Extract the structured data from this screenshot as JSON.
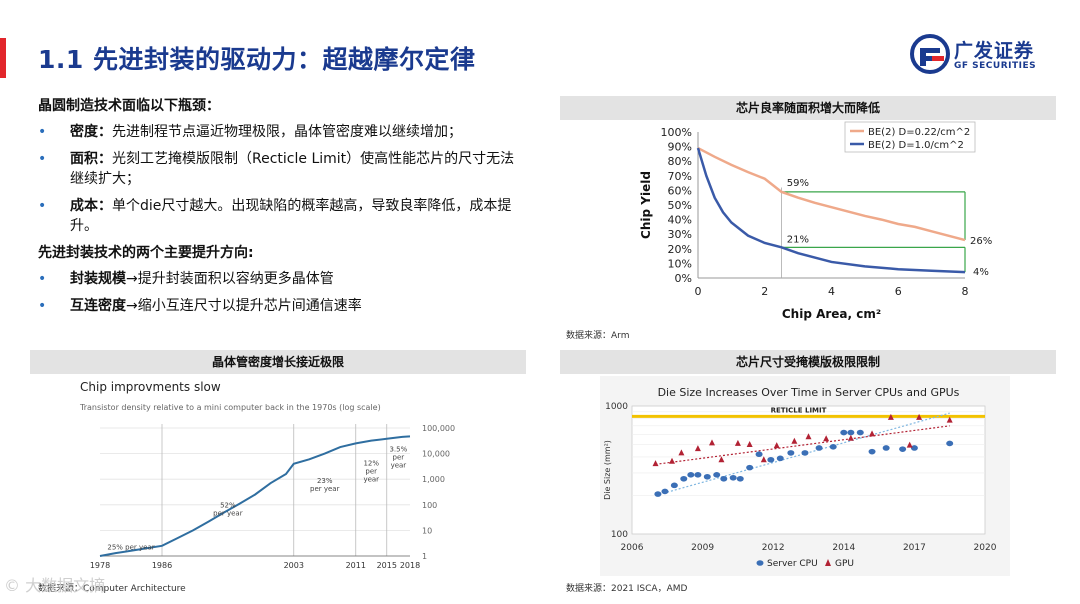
{
  "header": {
    "title": "1.1 先进封装的驱动力：超越摩尔定律",
    "logo_cn": "广发证券",
    "logo_en": "GF SECURITIES",
    "brand_color": "#1a3a8f",
    "accent_color": "#e2262b"
  },
  "text": {
    "heading1": "晶圆制造技术面临以下瓶颈：",
    "bullets1": [
      {
        "key": "密度：",
        "text": "先进制程节点逼近物理极限，晶体管密度难以继续增加；"
      },
      {
        "key": "面积：",
        "text": "光刻工艺掩模版限制（Recticle Limit）使高性能芯片的尺寸无法继续扩大；"
      },
      {
        "key": "成本：",
        "text": "单个die尺寸越大。出现缺陷的概率越高，导致良率降低，成本提升。"
      }
    ],
    "heading2": "先进封装技术的两个主要提升方向:",
    "bullets2": [
      {
        "key": "封装规模",
        "text": "→提升封装面积以容纳更多晶体管"
      },
      {
        "key": "互连密度",
        "text": "→缩小互连尺寸以提升芯片间通信速率"
      }
    ],
    "bullet_glyph": "•"
  },
  "panels": {
    "yield_title": "芯片良率随面积增大而降低",
    "yield_source": "数据来源：Arm",
    "density_title": "晶体管密度增长接近极限",
    "density_source": "数据来源：Computer Architecture",
    "die_title": "芯片尺寸受掩模版极限限制",
    "die_source": "数据来源：2021 ISCA，AMD"
  },
  "watermark": "© 大数据文摘",
  "chart_data": [
    {
      "type": "line",
      "xlabel": "Chip Area, cm²",
      "ylabel": "Chip Yield",
      "xlim": [
        0,
        8
      ],
      "ylim": [
        0,
        100
      ],
      "xticks": [
        "0",
        "2",
        "4",
        "6",
        "8"
      ],
      "yticks": [
        "0%",
        "10%",
        "20%",
        "30%",
        "40%",
        "50%",
        "60%",
        "70%",
        "80%",
        "90%",
        "100%"
      ],
      "legend_position": "top-right",
      "grid": false,
      "series": [
        {
          "name": "BE(2) D=0.22/cm^2",
          "color": "#efa98a",
          "x": [
            0,
            0.5,
            1,
            1.5,
            2,
            2.5,
            3,
            3.5,
            4,
            4.5,
            5,
            5.5,
            6,
            6.5,
            7,
            7.5,
            8
          ],
          "y": [
            89,
            83,
            77.5,
            72.5,
            68,
            59,
            55,
            51.5,
            48.5,
            45.5,
            42.5,
            40,
            37,
            35,
            32,
            29,
            26
          ]
        },
        {
          "name": "BE(2) D=1.0/cm^2",
          "color": "#3a5aa8",
          "x": [
            0,
            0.25,
            0.5,
            0.75,
            1,
            1.5,
            2,
            2.5,
            3,
            3.5,
            4,
            5,
            6,
            7,
            8
          ],
          "y": [
            89,
            70,
            55,
            45,
            38,
            29,
            24,
            21,
            17,
            14,
            11,
            8,
            6,
            5,
            4
          ]
        }
      ],
      "annotations": [
        "59%",
        "21%",
        "26%",
        "4%"
      ]
    },
    {
      "type": "line",
      "title": "Chip improvments slow",
      "subtitle": "Transistor density relative to a mini computer back in the 1970s (log scale)",
      "x_tick_labels": [
        "1978",
        "1986",
        "2003",
        "2011",
        "2015",
        "2018"
      ],
      "y_tick_labels": [
        "100,000",
        "10,000",
        "1,000",
        "100",
        "10",
        "1"
      ],
      "y_scale": "log",
      "ylim": [
        1,
        100000
      ],
      "series": [
        {
          "name": "density",
          "x": [
            1978,
            1980,
            1982,
            1984,
            1986,
            1988,
            1990,
            1992,
            1994,
            1996,
            1998,
            2000,
            2002,
            2003,
            2005,
            2007,
            2009,
            2011,
            2013,
            2015,
            2017,
            2018
          ],
          "y": [
            1,
            1.3,
            1.6,
            2.0,
            2.5,
            5,
            10,
            22,
            50,
            110,
            250,
            700,
            1600,
            4000,
            6000,
            10000,
            18000,
            25000,
            32000,
            38000,
            45000,
            47000
          ]
        }
      ],
      "annotations": [
        "25% per year",
        "52% per year",
        "23% per year",
        "12% per year",
        "3.5% per year"
      ]
    },
    {
      "type": "scatter",
      "title": "Die Size Increases Over Time in Server CPUs and GPUs",
      "ylabel": "Die Size (mm²)",
      "y_scale": "log",
      "xlim": [
        2006,
        2020
      ],
      "ylim": [
        100,
        1000
      ],
      "xticks": [
        "2006",
        "2009",
        "2012",
        "2014",
        "2017",
        "2020"
      ],
      "yticks": [
        "1000",
        "100"
      ],
      "reticle_label": "RETICLE LIMIT",
      "reticle_value": 830,
      "legend_position": "bottom",
      "series": [
        {
          "name": "Server CPU",
          "color": "#3b6fb6",
          "x": [
            2007.1,
            2007.4,
            2007.8,
            2008.2,
            2008.5,
            2008.8,
            2009.2,
            2009.6,
            2009.9,
            2010.3,
            2010.6,
            2011.0,
            2011.4,
            2011.9,
            2012.2,
            2012.5,
            2012.9,
            2013.3,
            2013.7,
            2014.0,
            2014.3,
            2014.7,
            2015.2,
            2015.8,
            2016.5,
            2017.0,
            2018.5
          ],
          "y": [
            205,
            215,
            240,
            270,
            290,
            290,
            280,
            290,
            270,
            275,
            270,
            330,
            420,
            380,
            390,
            430,
            430,
            470,
            480,
            620,
            620,
            620,
            440,
            470,
            460,
            470,
            510
          ]
        },
        {
          "name": "GPU",
          "color": "#b22234",
          "x": [
            2007.0,
            2007.7,
            2008.1,
            2008.8,
            2009.4,
            2009.8,
            2010.5,
            2011.0,
            2011.6,
            2012.1,
            2012.6,
            2013.0,
            2013.5,
            2014.3,
            2015.2,
            2016.0,
            2016.8,
            2017.2,
            2018.5
          ],
          "y": [
            355,
            370,
            430,
            465,
            515,
            380,
            510,
            500,
            380,
            490,
            530,
            575,
            555,
            560,
            605,
            815,
            495,
            815,
            775
          ]
        }
      ]
    }
  ]
}
